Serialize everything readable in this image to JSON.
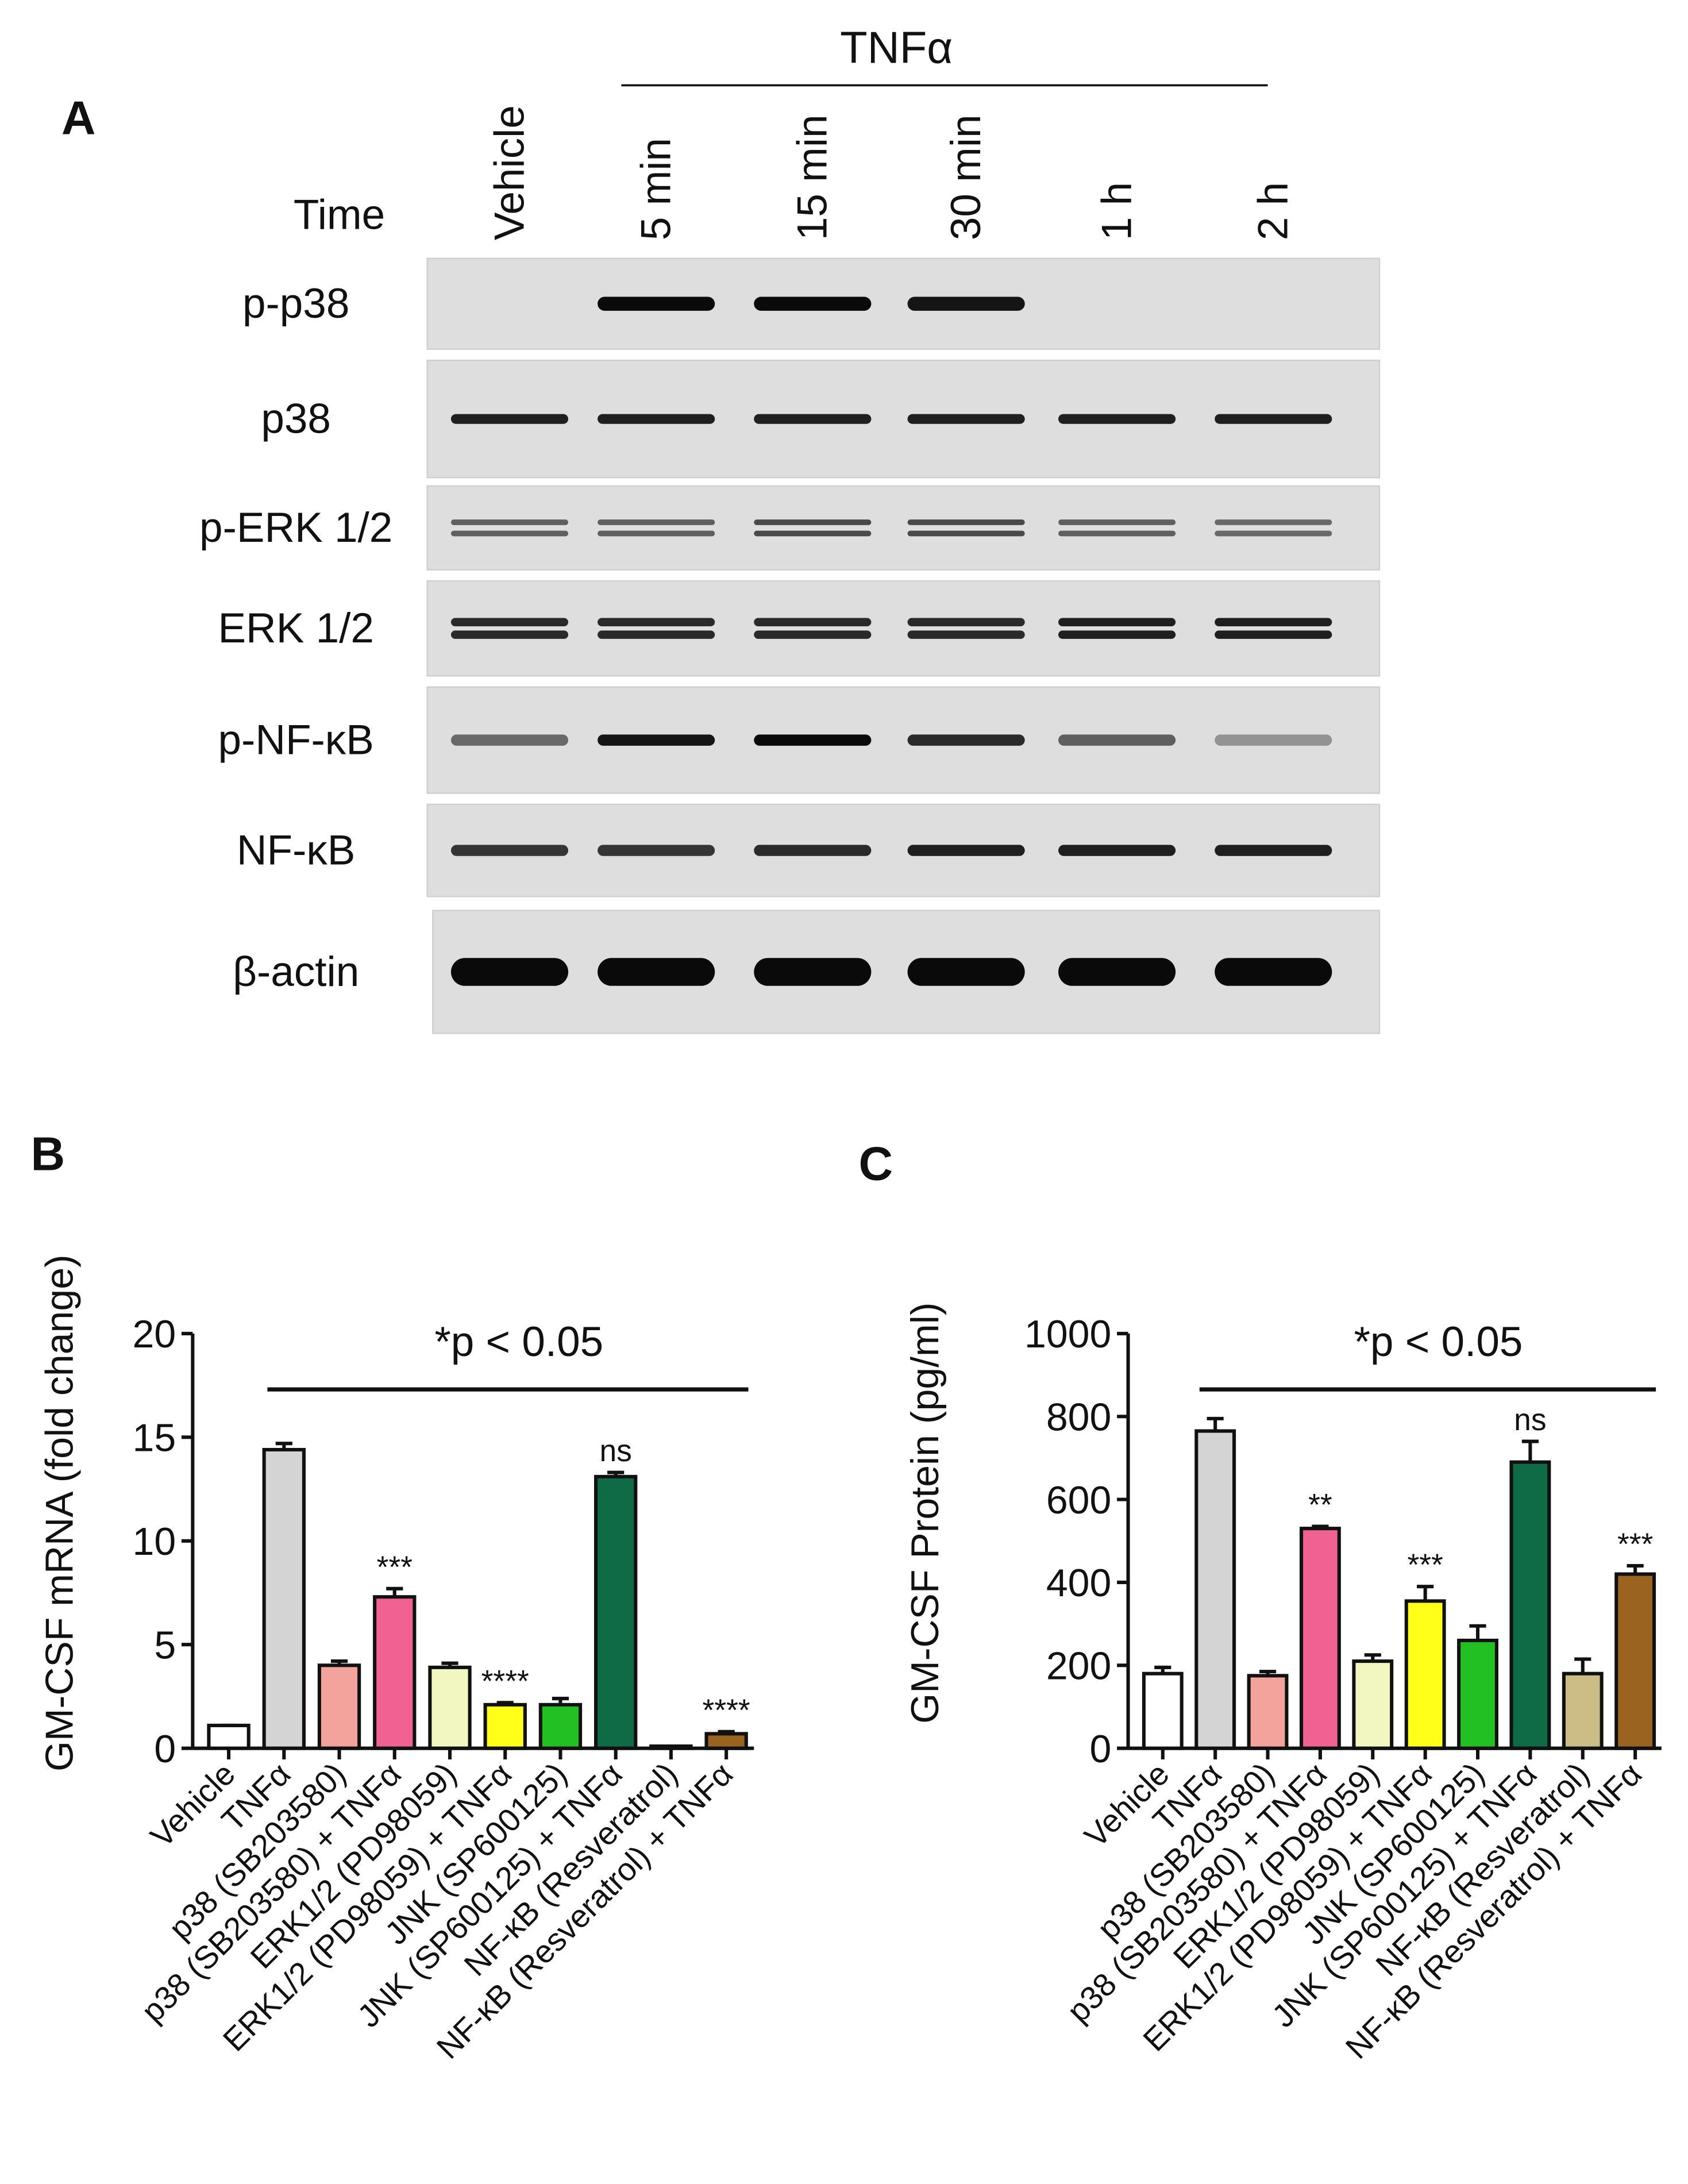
{
  "panel_a": {
    "label": "A",
    "treatment": "TNFα",
    "time_label": "Time",
    "lanes": [
      "Vehicle",
      "5 min",
      "15 min",
      "30 min",
      "1 h",
      "2 h"
    ],
    "rows": [
      "p-p38",
      "p38",
      "p-ERK 1/2",
      "ERK 1/2",
      "p-NF-κB",
      "NF-κB",
      "β-actin"
    ]
  },
  "chart_data": [
    {
      "type": "bar",
      "panel_label": "B",
      "ylabel": "GM-CSF mRNA (fold change)",
      "annotation": "*p < 0.05",
      "categories": [
        "Vehicle",
        "TNFα",
        "p38 (SB203580)",
        "p38 (SB203580) + TNFα",
        "ERK1/2 (PD98059)",
        "ERK1/2 (PD98059) + TNFα",
        "JNK (SP600125)",
        "JNK (SP600125) + TNFα",
        "NF-κB (Resveratrol)",
        "NF-κB (Resveratrol) + TNFα"
      ],
      "values": [
        1.1,
        14.4,
        4.0,
        7.3,
        3.9,
        2.1,
        2.1,
        13.1,
        0.1,
        0.7
      ],
      "errors": [
        0,
        0.3,
        0.2,
        0.4,
        0.2,
        0.1,
        0.3,
        0.2,
        0,
        0.1
      ],
      "significance": [
        null,
        null,
        null,
        "***",
        null,
        "****",
        null,
        "ns",
        null,
        "****"
      ],
      "colors": [
        "#ffffff",
        "#d4d4d4",
        "#f4a39c",
        "#f06292",
        "#f2f7c2",
        "#ffff1a",
        "#22c022",
        "#0f6b45",
        "#cbbd85",
        "#9a6420"
      ],
      "ylim": [
        0,
        20
      ],
      "yticks": [
        0,
        5,
        10,
        15,
        20
      ]
    },
    {
      "type": "bar",
      "panel_label": "C",
      "ylabel": "GM-CSF Protein (pg/ml)",
      "annotation": "*p < 0.05",
      "categories": [
        "Vehicle",
        "TNFα",
        "p38 (SB203580)",
        "p38 (SB203580) + TNFα",
        "ERK1/2 (PD98059)",
        "ERK1/2 (PD98059) + TNFα",
        "JNK (SP600125)",
        "JNK (SP600125) + TNFα",
        "NF-κB (Resveratrol)",
        "NF-κB (Resveratrol) + TNFα"
      ],
      "values": [
        180,
        765,
        175,
        530,
        210,
        355,
        260,
        690,
        180,
        420
      ],
      "errors": [
        15,
        30,
        10,
        5,
        15,
        35,
        35,
        50,
        35,
        20
      ],
      "significance": [
        null,
        null,
        null,
        "**",
        null,
        "***",
        null,
        "ns",
        null,
        "***"
      ],
      "colors": [
        "#ffffff",
        "#d4d4d4",
        "#f4a39c",
        "#f06292",
        "#f2f7c2",
        "#ffff1a",
        "#22c022",
        "#0f6b45",
        "#cbbd85",
        "#9a6420"
      ],
      "ylim": [
        0,
        1000
      ],
      "yticks": [
        0,
        200,
        400,
        600,
        800,
        1000
      ]
    }
  ]
}
